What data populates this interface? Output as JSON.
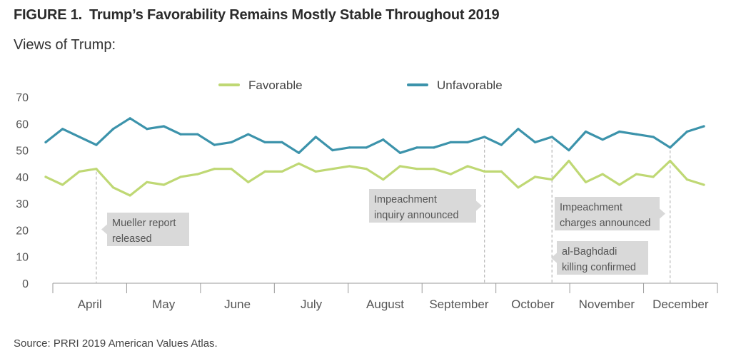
{
  "figure_label": "FIGURE 1.",
  "title": "Trump’s Favorability Remains Mostly Stable Throughout 2019",
  "subtitle": "Views of Trump:",
  "source": "Source: PRRI 2019 American Values Atlas.",
  "colors": {
    "favorable": "#bfd874",
    "unfavorable": "#3c93ab",
    "axis": "#9a9a9a",
    "annotation_bg": "#d9d9d9",
    "event_line": "#bdbdbd"
  },
  "chart_data": {
    "type": "line",
    "ylim": [
      0,
      70
    ],
    "yticks": [
      0,
      10,
      20,
      30,
      40,
      50,
      60,
      70
    ],
    "legend_position": "top",
    "months": [
      "April",
      "May",
      "June",
      "July",
      "August",
      "September",
      "October",
      "November",
      "December"
    ],
    "series": [
      {
        "name": "Favorable",
        "values": [
          40,
          37,
          42,
          43,
          36,
          33,
          38,
          37,
          40,
          41,
          43,
          43,
          38,
          42,
          42,
          45,
          42,
          43,
          44,
          43,
          39,
          44,
          43,
          43,
          41,
          44,
          42,
          42,
          36,
          40,
          39,
          46,
          38,
          41,
          37,
          41,
          40,
          46,
          39,
          37
        ]
      },
      {
        "name": "Unfavorable",
        "values": [
          53,
          58,
          55,
          52,
          58,
          62,
          58,
          59,
          56,
          56,
          52,
          53,
          56,
          53,
          53,
          49,
          55,
          50,
          51,
          51,
          54,
          49,
          51,
          51,
          53,
          53,
          55,
          52,
          58,
          53,
          55,
          50,
          57,
          54,
          57,
          56,
          55,
          51,
          57,
          59
        ]
      }
    ],
    "annotations": [
      {
        "label_lines": [
          "Mueller report",
          "released"
        ],
        "point_index": 3
      },
      {
        "label_lines": [
          "Impeachment",
          "inquiry announced"
        ],
        "point_index": 26
      },
      {
        "label_lines": [
          "al-Baghdadi",
          "killing confirmed"
        ],
        "point_index": 30
      },
      {
        "label_lines": [
          "Impeachment",
          "charges announced"
        ],
        "point_index": 37
      }
    ]
  }
}
